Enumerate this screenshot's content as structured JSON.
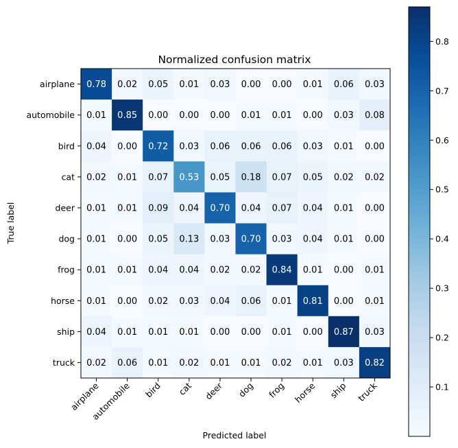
{
  "chart_data": {
    "type": "heatmap",
    "title": "Normalized confusion matrix",
    "xlabel": "Predicted label",
    "ylabel": "True label",
    "x_categories": [
      "airplane",
      "automobile",
      "bird",
      "cat",
      "deer",
      "dog",
      "frog",
      "horse",
      "ship",
      "truck"
    ],
    "y_categories": [
      "airplane",
      "automobile",
      "bird",
      "cat",
      "deer",
      "dog",
      "frog",
      "horse",
      "ship",
      "truck"
    ],
    "values": [
      [
        0.78,
        0.02,
        0.05,
        0.01,
        0.03,
        0.0,
        0.0,
        0.01,
        0.06,
        0.03
      ],
      [
        0.01,
        0.85,
        0.0,
        0.0,
        0.0,
        0.01,
        0.01,
        0.0,
        0.03,
        0.08
      ],
      [
        0.04,
        0.0,
        0.72,
        0.03,
        0.06,
        0.06,
        0.06,
        0.03,
        0.01,
        0.0
      ],
      [
        0.02,
        0.01,
        0.07,
        0.53,
        0.05,
        0.18,
        0.07,
        0.05,
        0.02,
        0.02
      ],
      [
        0.01,
        0.01,
        0.09,
        0.04,
        0.7,
        0.04,
        0.07,
        0.04,
        0.01,
        0.0
      ],
      [
        0.01,
        0.0,
        0.05,
        0.13,
        0.03,
        0.7,
        0.03,
        0.04,
        0.01,
        0.0
      ],
      [
        0.01,
        0.01,
        0.04,
        0.04,
        0.02,
        0.02,
        0.84,
        0.01,
        0.0,
        0.01
      ],
      [
        0.01,
        0.0,
        0.02,
        0.03,
        0.04,
        0.06,
        0.01,
        0.81,
        0.0,
        0.01
      ],
      [
        0.04,
        0.01,
        0.01,
        0.01,
        0.0,
        0.0,
        0.01,
        0.0,
        0.87,
        0.03
      ],
      [
        0.02,
        0.06,
        0.01,
        0.02,
        0.01,
        0.01,
        0.02,
        0.01,
        0.03,
        0.82
      ]
    ],
    "colormap": "Blues",
    "colorbar": {
      "range": [
        0.0,
        0.87
      ],
      "ticks": [
        0.1,
        0.2,
        0.3,
        0.4,
        0.5,
        0.6,
        0.7,
        0.8
      ],
      "tick_labels": [
        "0.1",
        "0.2",
        "0.3",
        "0.4",
        "0.5",
        "0.6",
        "0.7",
        "0.8"
      ]
    },
    "text_threshold": 0.435
  }
}
